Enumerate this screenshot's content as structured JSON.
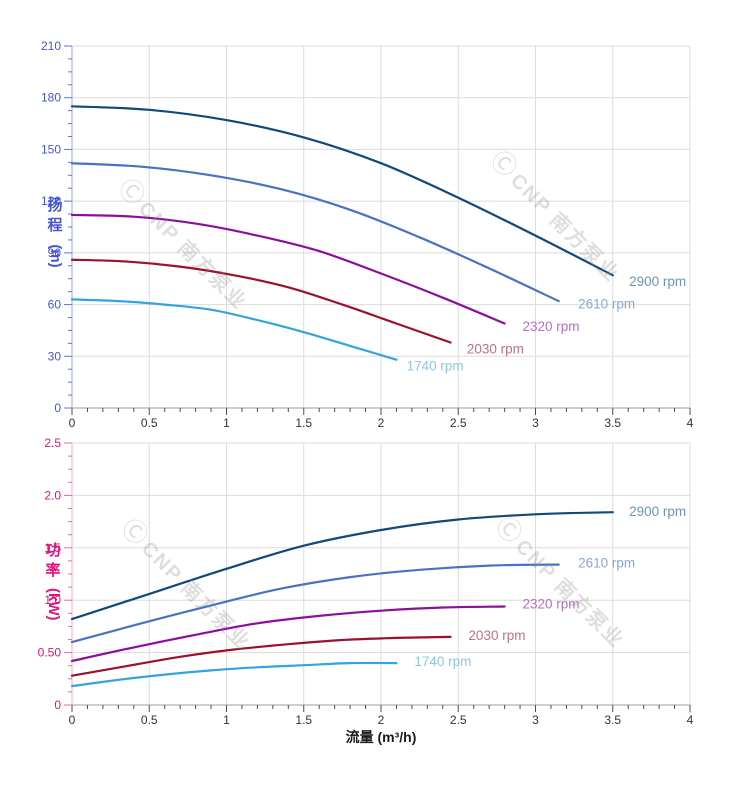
{
  "style": {
    "background": "#ffffff",
    "grid_color": "#dcdcdc"
  },
  "watermark": {
    "logo_glyph": "Ⓒ",
    "text": "CNP 南方泵业"
  },
  "x_axis": {
    "title": "流量 (m³/h)",
    "min": 0,
    "max": 4,
    "major_step": 0.5,
    "minor_step": 0.1,
    "tick_labels": [
      "0",
      "0.5",
      "1",
      "1.5",
      "2",
      "2.5",
      "3",
      "3.5",
      "4"
    ],
    "line_color": "#b0b0b0",
    "tick_color": "#4d4d4d",
    "label_color": "#333333"
  },
  "chart_data": [
    {
      "id": "head",
      "type": "line",
      "title": "",
      "xlabel": "流量 (m³/h)",
      "ylabel": "扬程 (m)",
      "y_title_chars": [
        "扬",
        "程"
      ],
      "y_unit": "(m)",
      "xlim": [
        0,
        4
      ],
      "ylim": [
        0,
        210
      ],
      "grid": true,
      "legend_position": "curve-end-labels",
      "axis": {
        "line_color": "#aab4e6",
        "tick_color": "#5e74d8",
        "label_color": "#4255d4"
      },
      "y": {
        "min": 0,
        "max": 210,
        "major_step": 30,
        "minor_step": 7.5,
        "tick_labels": [
          "0",
          "30",
          "60",
          "90",
          "120",
          "150",
          "180",
          "210"
        ]
      },
      "series": [
        {
          "name": "2900 rpm",
          "color": "#10497a",
          "label_color": "#6e94b5",
          "label_x": 3.58,
          "label_y": 73,
          "x": [
            0,
            0.5,
            1.0,
            1.5,
            2.0,
            2.5,
            3.0,
            3.5
          ],
          "y": [
            175,
            173,
            167,
            157,
            142,
            122,
            100,
            77
          ]
        },
        {
          "name": "2610 rpm",
          "color": "#4a72c2",
          "label_color": "#8aa6dd",
          "label_x": 3.25,
          "label_y": 60,
          "x": [
            0,
            0.45,
            0.9,
            1.35,
            1.8,
            2.25,
            2.7,
            3.15
          ],
          "y": [
            142,
            140,
            135,
            127,
            115,
            99,
            81,
            62
          ]
        },
        {
          "name": "2320 rpm",
          "color": "#8c0f9c",
          "label_color": "#ba6ec4",
          "label_x": 2.89,
          "label_y": 47,
          "x": [
            0,
            0.4,
            0.8,
            1.2,
            1.6,
            2.0,
            2.4,
            2.8
          ],
          "y": [
            112,
            111,
            107,
            100,
            91,
            78,
            64,
            49
          ]
        },
        {
          "name": "2030 rpm",
          "color": "#9c1030",
          "label_color": "#bd7189",
          "label_x": 2.53,
          "label_y": 34,
          "x": [
            0,
            0.35,
            0.7,
            1.05,
            1.4,
            1.75,
            2.1,
            2.45
          ],
          "y": [
            86,
            85,
            82,
            77,
            70,
            60,
            49,
            38
          ]
        },
        {
          "name": "1740 rpm",
          "color": "#35a3dc",
          "label_color": "#8fc6ea",
          "label_x": 2.14,
          "label_y": 24,
          "x": [
            0,
            0.3,
            0.6,
            0.9,
            1.2,
            1.5,
            1.8,
            2.1
          ],
          "y": [
            63,
            62,
            60,
            57,
            51,
            44,
            36,
            28
          ]
        }
      ]
    },
    {
      "id": "power",
      "type": "line",
      "title": "",
      "xlabel": "流量 (m³/h)",
      "ylabel": "功率 (kW)",
      "y_title_chars": [
        "功",
        "率"
      ],
      "y_unit": "(kW)",
      "xlim": [
        0,
        4
      ],
      "ylim": [
        0,
        2.5
      ],
      "grid": true,
      "legend_position": "curve-end-labels",
      "axis": {
        "line_color": "#f2b9d7",
        "tick_color": "#e06aa8",
        "label_color": "#e0137b"
      },
      "y": {
        "min": 0,
        "max": 2.5,
        "major_step": 0.5,
        "minor_step": 0.125,
        "tick_labels": [
          "0",
          "0.50",
          "1.0",
          "1.5",
          "2.0",
          "2.5"
        ]
      },
      "series": [
        {
          "name": "2900 rpm",
          "color": "#10497a",
          "label_color": "#6e94b5",
          "label_x": 3.58,
          "label_y": 1.84,
          "x": [
            0,
            0.5,
            1.0,
            1.5,
            2.0,
            2.5,
            3.0,
            3.5
          ],
          "y": [
            0.82,
            1.06,
            1.3,
            1.52,
            1.67,
            1.77,
            1.82,
            1.84
          ]
        },
        {
          "name": "2610 rpm",
          "color": "#4a72c2",
          "label_color": "#8aa6dd",
          "label_x": 3.25,
          "label_y": 1.35,
          "x": [
            0,
            0.45,
            0.9,
            1.35,
            1.8,
            2.25,
            2.7,
            3.15
          ],
          "y": [
            0.6,
            0.78,
            0.95,
            1.11,
            1.22,
            1.29,
            1.33,
            1.34
          ]
        },
        {
          "name": "2320 rpm",
          "color": "#8c0f9c",
          "label_color": "#ba6ec4",
          "label_x": 2.89,
          "label_y": 0.96,
          "x": [
            0,
            0.4,
            0.8,
            1.2,
            1.6,
            2.0,
            2.4,
            2.8
          ],
          "y": [
            0.42,
            0.55,
            0.67,
            0.78,
            0.85,
            0.9,
            0.93,
            0.94
          ]
        },
        {
          "name": "2030 rpm",
          "color": "#9c1030",
          "label_color": "#bd7189",
          "label_x": 2.54,
          "label_y": 0.66,
          "x": [
            0,
            0.35,
            0.7,
            1.05,
            1.4,
            1.75,
            2.1,
            2.45
          ],
          "y": [
            0.28,
            0.37,
            0.46,
            0.53,
            0.58,
            0.62,
            0.64,
            0.65
          ]
        },
        {
          "name": "1740 rpm",
          "color": "#35a3dc",
          "label_color": "#8fc6ea",
          "label_x": 2.19,
          "label_y": 0.41,
          "x": [
            0,
            0.3,
            0.6,
            0.9,
            1.2,
            1.5,
            1.8,
            2.1
          ],
          "y": [
            0.18,
            0.24,
            0.29,
            0.33,
            0.36,
            0.38,
            0.4,
            0.4
          ]
        }
      ]
    }
  ]
}
